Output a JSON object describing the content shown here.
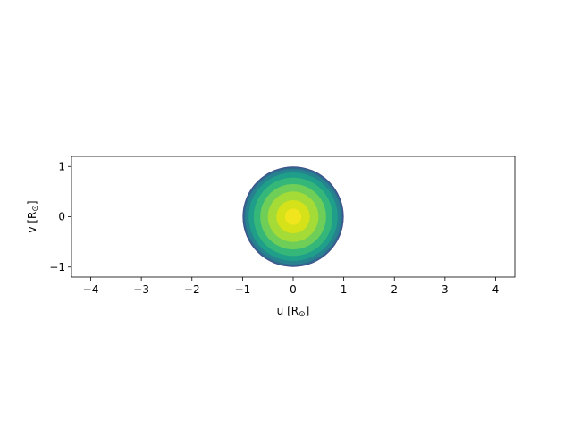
{
  "chart_data": {
    "type": "heatmap",
    "title": "",
    "xlabel": "u [R",
    "xlabel_sub": "⊙",
    "xlabel_end": "]",
    "ylabel": "v [R",
    "ylabel_sub": "⊙",
    "ylabel_end": "]",
    "xlim": [
      -4.38,
      4.38
    ],
    "ylim": [
      -1.2,
      1.2
    ],
    "xticks": [
      -4,
      -3,
      -2,
      -1,
      0,
      1,
      2,
      3,
      4
    ],
    "xtick_labels": [
      "−4",
      "−3",
      "−2",
      "−1",
      "0",
      "1",
      "2",
      "3",
      "4"
    ],
    "yticks": [
      -1,
      0,
      1
    ],
    "ytick_labels": [
      "−1",
      "0",
      "1"
    ],
    "grid": false,
    "disk": {
      "center": [
        0,
        0
      ],
      "radius": 1.0,
      "colormap": "viridis",
      "color_center": "#fde725",
      "color_edge": "#3b528b",
      "levels": [
        {
          "r": 1.0,
          "color": "#3e4a89"
        },
        {
          "r": 0.985,
          "color": "#31688e"
        },
        {
          "r": 0.95,
          "color": "#26828e"
        },
        {
          "r": 0.88,
          "color": "#1f9e89"
        },
        {
          "r": 0.78,
          "color": "#35b779"
        },
        {
          "r": 0.65,
          "color": "#6ece58"
        },
        {
          "r": 0.5,
          "color": "#a5db36"
        },
        {
          "r": 0.33,
          "color": "#d5e21a"
        },
        {
          "r": 0.16,
          "color": "#f1e51d"
        }
      ]
    }
  }
}
